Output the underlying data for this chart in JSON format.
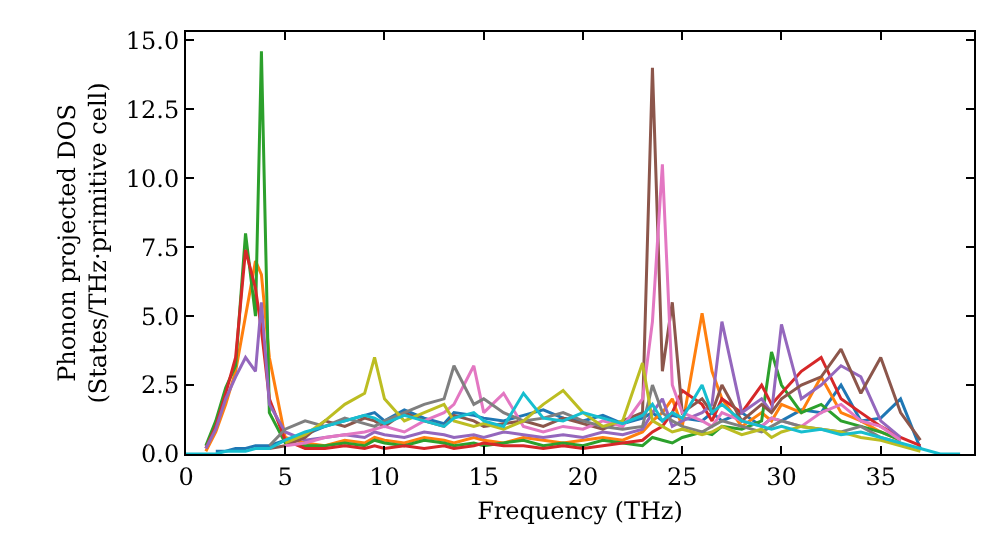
{
  "chart_data": {
    "type": "line",
    "xlabel": "Frequency (THz)",
    "ylabel": "Phonon projected DOS\n(States/THz·primitive cell)",
    "x": [
      0,
      1,
      1.5,
      2,
      2.5,
      3,
      3.5,
      3.8,
      4.2,
      5,
      6,
      7,
      8,
      9,
      9.5,
      10,
      11,
      12,
      13,
      13.5,
      14.5,
      15,
      16,
      17,
      18,
      19,
      20,
      21,
      22,
      23,
      23.5,
      24,
      24.5,
      25,
      26,
      26.5,
      27,
      28,
      29,
      29.5,
      30,
      31,
      32,
      33,
      34,
      35,
      36,
      37,
      38,
      39
    ],
    "xlim": [
      0,
      39.7
    ],
    "xticks": [
      0,
      5,
      10,
      15,
      20,
      25,
      30,
      35
    ],
    "ylim": [
      0,
      15.3
    ],
    "yticks": [
      {
        "value": 0,
        "label": "0.0"
      },
      {
        "value": 2.5,
        "label": "2.5"
      },
      {
        "value": 5,
        "label": "5.0"
      },
      {
        "value": 7.5,
        "label": "7.5"
      },
      {
        "value": 10,
        "label": "10.0"
      },
      {
        "value": 12.5,
        "label": "12.5"
      },
      {
        "value": 15,
        "label": "15.0"
      }
    ],
    "grid": false,
    "marker": "none",
    "line_style": "solid",
    "series": [
      {
        "color": "#1f77b4",
        "values": [
          null,
          null,
          0.1,
          0.1,
          0.2,
          0.2,
          0.3,
          0.3,
          0.3,
          0.5,
          0.7,
          1.0,
          1.2,
          1.4,
          1.5,
          1.2,
          1.6,
          1.3,
          1.1,
          1.5,
          1.4,
          1.3,
          1.2,
          1.4,
          1.6,
          1.3,
          1.2,
          1.4,
          1.1,
          1.3,
          1.5,
          1.2,
          1.4,
          1.3,
          1.2,
          1.5,
          1.2,
          1.5,
          1.0,
          1.3,
          1.2,
          1.6,
          1.5,
          2.5,
          1.2,
          1.3,
          2.0,
          0.2,
          null,
          null
        ]
      },
      {
        "color": "#ff7f0e",
        "values": [
          null,
          0.1,
          0.8,
          1.8,
          3.0,
          5.0,
          7.0,
          6.5,
          3.5,
          0.6,
          0.4,
          0.3,
          0.5,
          0.4,
          0.6,
          0.5,
          0.4,
          0.6,
          0.5,
          0.4,
          0.6,
          0.5,
          0.4,
          0.6,
          0.5,
          0.4,
          0.5,
          0.6,
          0.5,
          0.8,
          1.2,
          1.5,
          2.0,
          1.0,
          5.1,
          3.0,
          2.0,
          1.0,
          1.5,
          1.2,
          1.8,
          1.5,
          2.8,
          1.5,
          1.2,
          0.8,
          0.5,
          null,
          null,
          null
        ]
      },
      {
        "color": "#2ca02c",
        "values": [
          null,
          0.3,
          1.2,
          2.4,
          3.2,
          8.0,
          5.0,
          14.6,
          1.5,
          0.4,
          0.3,
          0.3,
          0.4,
          0.3,
          0.5,
          0.4,
          0.3,
          0.5,
          0.4,
          0.3,
          0.4,
          0.3,
          0.4,
          0.5,
          0.3,
          0.4,
          0.3,
          0.5,
          0.4,
          0.3,
          0.6,
          0.5,
          0.4,
          0.6,
          0.8,
          0.7,
          1.0,
          0.9,
          1.2,
          3.7,
          2.5,
          1.5,
          1.8,
          1.2,
          1.0,
          0.8,
          0.5,
          null,
          null,
          null
        ]
      },
      {
        "color": "#d62728",
        "values": [
          null,
          0.2,
          1.0,
          2.2,
          3.5,
          7.4,
          6.0,
          4.5,
          2.0,
          0.5,
          0.2,
          0.2,
          0.3,
          0.2,
          0.3,
          0.2,
          0.3,
          0.2,
          0.3,
          0.2,
          0.3,
          0.4,
          0.3,
          0.3,
          0.2,
          0.3,
          0.2,
          0.3,
          0.4,
          0.5,
          0.8,
          1.0,
          1.5,
          2.3,
          1.8,
          1.2,
          2.0,
          1.5,
          2.5,
          1.8,
          2.2,
          3.0,
          3.5,
          2.0,
          1.5,
          1.0,
          0.6,
          0.3,
          null,
          null
        ]
      },
      {
        "color": "#9467bd",
        "values": [
          null,
          0.2,
          0.9,
          2.0,
          2.8,
          3.5,
          3.0,
          5.5,
          1.8,
          0.8,
          0.5,
          0.6,
          0.7,
          0.6,
          0.8,
          0.7,
          0.6,
          0.8,
          0.7,
          0.6,
          0.7,
          0.6,
          0.8,
          0.7,
          0.6,
          0.7,
          0.6,
          0.8,
          0.7,
          0.9,
          1.5,
          2.0,
          1.0,
          1.2,
          1.5,
          1.8,
          4.8,
          1.5,
          2.0,
          1.5,
          4.7,
          2.0,
          2.5,
          3.2,
          2.8,
          1.2,
          0.6,
          null,
          null,
          null
        ]
      },
      {
        "color": "#8c564b",
        "values": [
          null,
          null,
          null,
          null,
          null,
          null,
          null,
          null,
          0.2,
          0.3,
          0.6,
          1.2,
          1.0,
          1.3,
          1.2,
          1.0,
          1.5,
          1.2,
          1.0,
          1.4,
          1.2,
          1.0,
          1.1,
          1.2,
          1.0,
          1.3,
          1.1,
          0.9,
          1.2,
          1.5,
          14.0,
          3.0,
          5.5,
          1.5,
          2.0,
          1.5,
          2.5,
          1.2,
          1.8,
          1.5,
          2.0,
          2.5,
          2.8,
          3.8,
          2.2,
          3.5,
          1.5,
          0.5,
          null,
          null
        ]
      },
      {
        "color": "#e377c2",
        "values": [
          null,
          null,
          null,
          null,
          null,
          null,
          null,
          null,
          null,
          0.3,
          0.4,
          0.6,
          0.7,
          0.8,
          0.9,
          1.0,
          0.8,
          1.2,
          1.5,
          1.8,
          3.2,
          1.5,
          2.2,
          1.0,
          0.8,
          1.0,
          0.9,
          1.2,
          1.0,
          2.0,
          4.8,
          10.5,
          2.5,
          1.5,
          1.2,
          1.0,
          1.5,
          1.2,
          1.0,
          1.3,
          1.2,
          1.0,
          1.5,
          1.8,
          1.2,
          1.0,
          0.5,
          null,
          null,
          null
        ]
      },
      {
        "color": "#7f7f7f",
        "values": [
          null,
          null,
          null,
          null,
          null,
          null,
          null,
          null,
          0.3,
          0.9,
          1.2,
          1.0,
          1.3,
          1.1,
          1.0,
          1.2,
          1.5,
          1.8,
          2.0,
          3.2,
          1.8,
          2.0,
          1.5,
          1.2,
          1.3,
          1.5,
          1.2,
          1.0,
          0.9,
          1.0,
          2.5,
          1.5,
          1.2,
          1.0,
          0.8,
          1.0,
          1.2,
          1.0,
          0.8,
          1.0,
          1.2,
          1.0,
          0.9,
          0.8,
          1.0,
          0.6,
          0.4,
          null,
          null,
          null
        ]
      },
      {
        "color": "#bcbd22",
        "values": [
          null,
          null,
          null,
          null,
          null,
          null,
          null,
          null,
          null,
          0.4,
          0.7,
          1.2,
          1.8,
          2.2,
          3.5,
          2.0,
          1.2,
          1.5,
          1.8,
          1.2,
          1.0,
          1.1,
          0.9,
          1.2,
          1.8,
          2.3,
          1.5,
          1.0,
          1.2,
          3.3,
          1.2,
          1.0,
          0.8,
          0.9,
          0.7,
          0.8,
          1.0,
          0.7,
          0.9,
          0.6,
          0.8,
          1.0,
          0.9,
          0.8,
          0.6,
          0.5,
          0.3,
          0.1,
          null,
          null
        ]
      },
      {
        "color": "#17becf",
        "values": [
          0,
          0,
          0,
          0.1,
          0.1,
          0.1,
          0.2,
          0.2,
          0.2,
          0.5,
          0.8,
          1.0,
          1.2,
          1.4,
          1.3,
          1.1,
          1.4,
          1.2,
          1.0,
          1.3,
          1.5,
          1.2,
          1.0,
          2.2,
          1.3,
          1.2,
          1.5,
          1.3,
          1.1,
          1.4,
          1.8,
          1.2,
          1.5,
          1.3,
          2.5,
          1.5,
          1.8,
          1.2,
          1.0,
          0.9,
          1.0,
          0.8,
          0.9,
          0.7,
          0.8,
          0.6,
          0.4,
          0.2,
          0,
          0
        ]
      }
    ]
  }
}
